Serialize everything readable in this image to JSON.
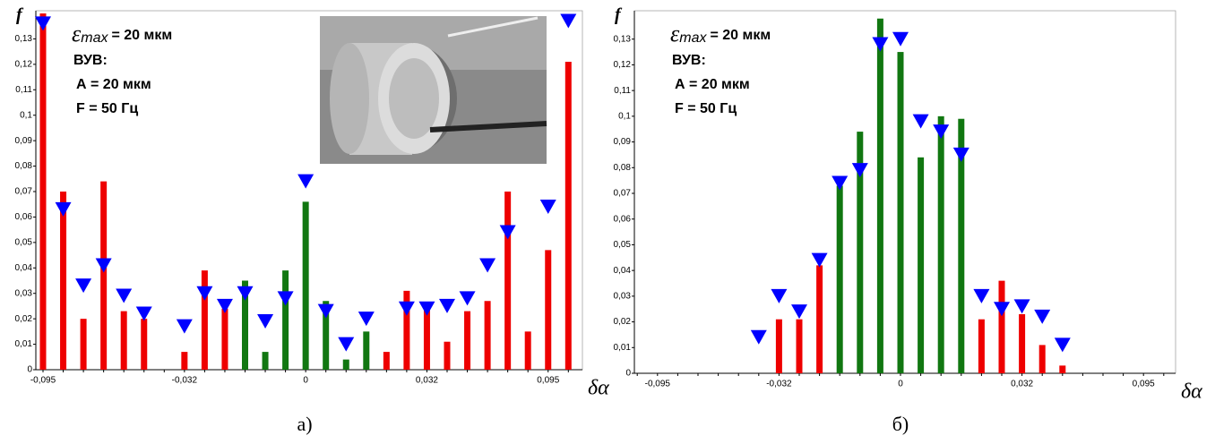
{
  "chart_data": [
    {
      "type": "bar",
      "y_label": "f",
      "x_label": "δα",
      "epsilon_label": {
        "symbol": "ε",
        "sub": "max",
        "text": "= 20 мкм"
      },
      "annotations": [
        "ВУВ:",
        "А = 20 мкм",
        "F = 50 Гц"
      ],
      "caption": "а)",
      "categories": [
        "-0,095",
        null,
        null,
        null,
        null,
        null,
        null,
        "-0,032",
        null,
        null,
        null,
        null,
        null,
        "0",
        null,
        null,
        null,
        null,
        null,
        "0,032",
        null,
        null,
        null,
        null,
        null,
        "0,095",
        null
      ],
      "series": [
        {
          "color": "#ee0000",
          "values": [
            0.14,
            0.07,
            0.02,
            0.074,
            0.023,
            0.02,
            null,
            0.007,
            0.039,
            0.024,
            null,
            null,
            null,
            null,
            null,
            null,
            null,
            0.007,
            0.031,
            0.024,
            0.011,
            0.023,
            0.027,
            0.07,
            0.015,
            0.047,
            0.121
          ]
        },
        {
          "color": "#117711",
          "values": [
            null,
            null,
            null,
            null,
            null,
            null,
            null,
            null,
            null,
            null,
            0.035,
            0.007,
            0.039,
            0.066,
            0.027,
            0.004,
            0.015,
            null,
            null,
            null,
            null,
            null,
            null,
            null,
            null,
            null,
            null
          ]
        },
        {
          "color": "#0000ff",
          "marker": "triangle-down",
          "values": [
            0.136,
            0.063,
            0.033,
            0.041,
            0.029,
            0.022,
            null,
            0.017,
            0.03,
            0.025,
            0.03,
            0.019,
            0.028,
            0.074,
            0.023,
            0.01,
            0.02,
            null,
            0.024,
            0.024,
            0.025,
            0.028,
            0.041,
            0.054,
            null,
            0.064,
            0.137
          ]
        }
      ],
      "ylim": [
        0,
        0.14
      ],
      "yticks": [
        0,
        {
          "value": 0.01,
          "label": "0,01"
        },
        {
          "value": 0.02,
          "label": "0,02"
        },
        {
          "value": 0.03,
          "label": "0,03"
        },
        {
          "value": 0.04,
          "label": "0,04"
        },
        {
          "value": 0.05,
          "label": "0,05"
        },
        {
          "value": 0.06,
          "label": "0,06"
        },
        {
          "value": 0.07,
          "label": "0,07"
        },
        {
          "value": 0.08,
          "label": "0,08"
        },
        {
          "value": 0.09,
          "label": "0,09"
        },
        {
          "value": 0.1,
          "label": "0,1"
        },
        {
          "value": 0.11,
          "label": "0,11"
        },
        {
          "value": 0.12,
          "label": "0,12"
        },
        {
          "value": 0.13,
          "label": "0,13"
        }
      ],
      "grid": false
    },
    {
      "type": "bar",
      "y_label": "f",
      "x_label": "δα",
      "epsilon_label": {
        "symbol": "ε",
        "sub": "max",
        "text": "= 20 мкм"
      },
      "annotations": [
        "ВУВ:",
        "А = 20 мкм",
        "F = 50 Гц"
      ],
      "caption": "б)",
      "categories": [
        null,
        "-0,095",
        null,
        null,
        null,
        null,
        null,
        "-0,032",
        null,
        null,
        null,
        null,
        null,
        "0",
        null,
        null,
        null,
        null,
        null,
        "0,032",
        null,
        null,
        null,
        null,
        null,
        "0,095",
        null
      ],
      "series": [
        {
          "color": "#ee0000",
          "values": [
            null,
            null,
            null,
            null,
            null,
            null,
            null,
            0.021,
            0.021,
            0.042,
            null,
            null,
            null,
            null,
            null,
            null,
            null,
            0.021,
            0.036,
            0.023,
            0.011,
            0.003,
            null,
            null,
            null,
            null,
            null
          ]
        },
        {
          "color": "#117711",
          "values": [
            null,
            null,
            null,
            null,
            null,
            null,
            null,
            null,
            null,
            null,
            0.073,
            0.094,
            0.138,
            0.125,
            0.084,
            0.1,
            0.099,
            null,
            null,
            null,
            null,
            null,
            null,
            null,
            null,
            null,
            null
          ]
        },
        {
          "color": "#0000ff",
          "marker": "triangle-down",
          "values": [
            null,
            null,
            null,
            null,
            null,
            null,
            0.014,
            0.03,
            0.024,
            0.044,
            0.074,
            0.079,
            0.128,
            0.13,
            0.098,
            0.094,
            0.085,
            0.03,
            0.025,
            0.026,
            0.022,
            0.011,
            null,
            null,
            null,
            null,
            null
          ]
        }
      ],
      "ylim": [
        0,
        0.14
      ],
      "yticks": [
        0,
        {
          "value": 0.01,
          "label": "0,01"
        },
        {
          "value": 0.02,
          "label": "0,02"
        },
        {
          "value": 0.03,
          "label": "0,03"
        },
        {
          "value": 0.04,
          "label": "0,04"
        },
        {
          "value": 0.05,
          "label": "0,05"
        },
        {
          "value": 0.06,
          "label": "0,06"
        },
        {
          "value": 0.07,
          "label": "0,07"
        },
        {
          "value": 0.08,
          "label": "0,08"
        },
        {
          "value": 0.09,
          "label": "0,09"
        },
        {
          "value": 0.1,
          "label": "0,1"
        },
        {
          "value": 0.11,
          "label": "0,11"
        },
        {
          "value": 0.12,
          "label": "0,12"
        },
        {
          "value": 0.13,
          "label": "0,13"
        }
      ],
      "grid": false
    }
  ]
}
